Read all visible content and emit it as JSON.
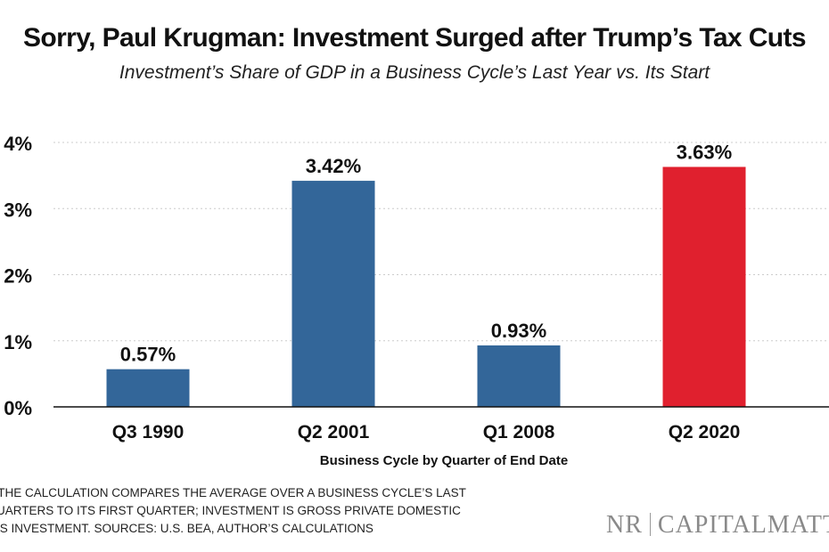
{
  "chart_data": {
    "type": "bar",
    "title": "Sorry, Paul Krugman: Investment Surged after Trump’s Tax Cuts",
    "subtitle": "Investment’s Share of GDP in a Business Cycle’s Last Year vs. Its Start",
    "categories": [
      "Q3 1990",
      "Q2 2001",
      "Q1 2008",
      "Q2 2020"
    ],
    "values": [
      0.57,
      3.42,
      0.93,
      3.63
    ],
    "data_labels": [
      "0.57%",
      "3.42%",
      "0.93%",
      "3.63%"
    ],
    "bar_colors": [
      "#336699",
      "#336699",
      "#336699",
      "#e0202e"
    ],
    "xlabel": "Business Cycle by Quarter of End Date",
    "ylabel": "",
    "ylim": [
      0,
      4
    ],
    "yticks": [
      0,
      1,
      2,
      3,
      4
    ],
    "ytick_labels": [
      "0%",
      "1%",
      "2%",
      "3%",
      "4%"
    ],
    "grid": "horizontal dotted",
    "legend": "none"
  },
  "notes": {
    "line1": "ES: THE CALCULATION COMPARES THE AVERAGE OVER A BUSINESS CYCLE’S LAST",
    "line2": "R QUARTERS TO ITS FIRST QUARTER; INVESTMENT IS GROSS PRIVATE DOMESTIC",
    "line3": "NESS INVESTMENT. SOURCES: U.S. BEA, AUTHOR’S CALCULATIONS"
  },
  "logo": {
    "left": "NR",
    "right": "CAPITALMATTE"
  }
}
